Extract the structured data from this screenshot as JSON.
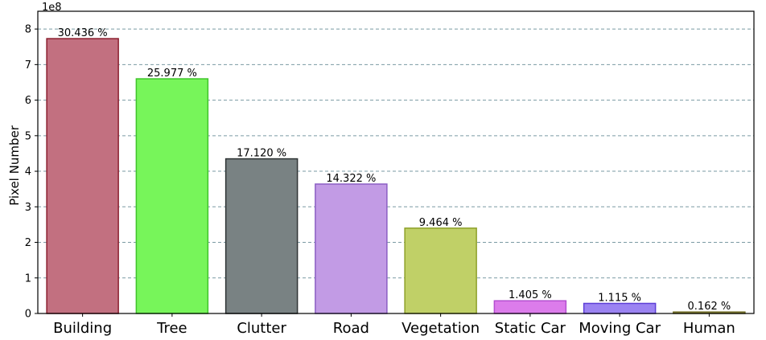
{
  "chart_data": {
    "type": "bar",
    "title": "",
    "xlabel": "",
    "ylabel": "Pixel Number",
    "y_multiplier": "1e8",
    "ylim": [
      0,
      8.5
    ],
    "yticks": [
      "0",
      "1",
      "2",
      "3",
      "4",
      "5",
      "6",
      "7",
      "8"
    ],
    "grid": true,
    "categories": [
      "Building",
      "Tree",
      "Clutter",
      "Road",
      "Vegetation",
      "Static Car",
      "Moving Car",
      "Human"
    ],
    "values": [
      7.73,
      6.6,
      4.35,
      3.64,
      2.4,
      0.357,
      0.283,
      0.041
    ],
    "labels": [
      "30.436 %",
      "25.977 %",
      "17.120 %",
      "14.322 %",
      "9.464 %",
      "1.405 %",
      "1.115 %",
      "0.162 %"
    ],
    "fill_colors": [
      "#c27080",
      "#77f55a",
      "#798283",
      "#c29be5",
      "#c0d067",
      "#dc7ceb",
      "#9b83f2",
      "#b8b46a"
    ],
    "edge_colors": [
      "#8b1e2e",
      "#3fc42a",
      "#2f3435",
      "#8b5fc4",
      "#8ea02a",
      "#b44fd0",
      "#5d3fd6",
      "#6e6a22"
    ]
  }
}
